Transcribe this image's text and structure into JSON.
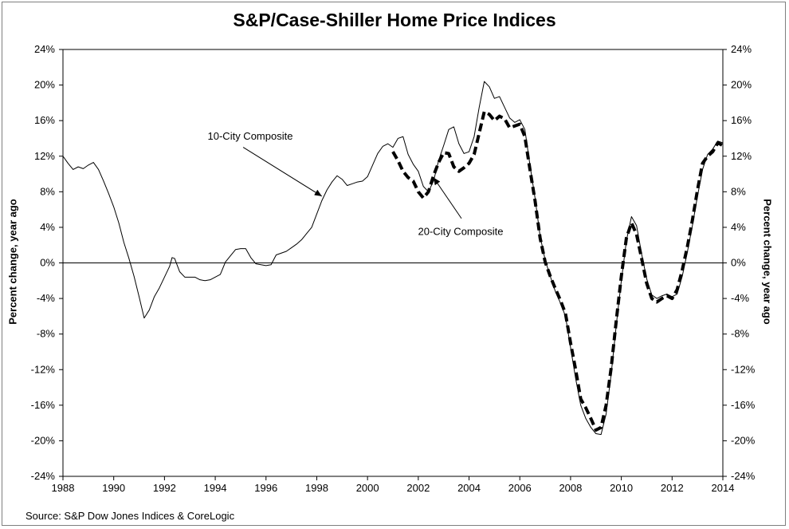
{
  "chart_data": {
    "type": "line",
    "title": "S&P/Case-Shiller Home Price Indices",
    "ylabel_left": "Percent change, year ago",
    "ylabel_right": "Percent change, year ago",
    "xlim": [
      1988,
      2014
    ],
    "ylim": [
      -24,
      24
    ],
    "x_ticks": [
      "1988",
      "1990",
      "1992",
      "1994",
      "1996",
      "1998",
      "2000",
      "2002",
      "2004",
      "2006",
      "2008",
      "2010",
      "2012",
      "2014"
    ],
    "y_ticks": [
      "24%",
      "20%",
      "16%",
      "12%",
      "8%",
      "4%",
      "0%",
      "-4%",
      "-8%",
      "-12%",
      "-16%",
      "-20%",
      "-24%"
    ],
    "grid": false,
    "annotations": [
      {
        "text": "10-City Composite",
        "series": "10-City Composite",
        "arrow_to": [
          1998.2,
          7.5
        ]
      },
      {
        "text": "20-City Composite",
        "series": "20-City Composite",
        "arrow_to": [
          2002.6,
          9.6
        ]
      }
    ],
    "series": [
      {
        "name": "10-City Composite",
        "style": "solid",
        "points": [
          [
            1988.0,
            12.0
          ],
          [
            1988.2,
            11.2
          ],
          [
            1988.4,
            10.5
          ],
          [
            1988.6,
            10.8
          ],
          [
            1988.8,
            10.6
          ],
          [
            1989.0,
            11.0
          ],
          [
            1989.2,
            11.3
          ],
          [
            1989.4,
            10.5
          ],
          [
            1989.6,
            9.2
          ],
          [
            1989.8,
            7.8
          ],
          [
            1990.0,
            6.3
          ],
          [
            1990.2,
            4.5
          ],
          [
            1990.4,
            2.3
          ],
          [
            1990.6,
            0.5
          ],
          [
            1990.8,
            -1.5
          ],
          [
            1991.0,
            -3.8
          ],
          [
            1991.2,
            -6.2
          ],
          [
            1991.4,
            -5.3
          ],
          [
            1991.6,
            -3.8
          ],
          [
            1991.8,
            -2.8
          ],
          [
            1992.0,
            -1.6
          ],
          [
            1992.2,
            -0.4
          ],
          [
            1992.3,
            0.6
          ],
          [
            1992.4,
            0.5
          ],
          [
            1992.6,
            -1.0
          ],
          [
            1992.8,
            -1.6
          ],
          [
            1993.0,
            -1.6
          ],
          [
            1993.2,
            -1.6
          ],
          [
            1993.4,
            -1.9
          ],
          [
            1993.6,
            -2.0
          ],
          [
            1993.8,
            -1.9
          ],
          [
            1994.0,
            -1.6
          ],
          [
            1994.2,
            -1.3
          ],
          [
            1994.4,
            0.1
          ],
          [
            1994.6,
            0.8
          ],
          [
            1994.8,
            1.5
          ],
          [
            1995.0,
            1.6
          ],
          [
            1995.2,
            1.6
          ],
          [
            1995.4,
            0.6
          ],
          [
            1995.6,
            -0.1
          ],
          [
            1995.8,
            -0.2
          ],
          [
            1996.0,
            -0.3
          ],
          [
            1996.2,
            -0.2
          ],
          [
            1996.4,
            0.9
          ],
          [
            1996.6,
            1.1
          ],
          [
            1996.8,
            1.3
          ],
          [
            1997.0,
            1.7
          ],
          [
            1997.2,
            2.1
          ],
          [
            1997.4,
            2.6
          ],
          [
            1997.6,
            3.3
          ],
          [
            1997.8,
            4.0
          ],
          [
            1998.0,
            5.5
          ],
          [
            1998.2,
            7.0
          ],
          [
            1998.4,
            8.2
          ],
          [
            1998.6,
            9.1
          ],
          [
            1998.8,
            9.8
          ],
          [
            1999.0,
            9.4
          ],
          [
            1999.2,
            8.7
          ],
          [
            1999.4,
            8.9
          ],
          [
            1999.6,
            9.1
          ],
          [
            1999.8,
            9.2
          ],
          [
            2000.0,
            9.7
          ],
          [
            2000.2,
            11.0
          ],
          [
            2000.4,
            12.3
          ],
          [
            2000.6,
            13.1
          ],
          [
            2000.8,
            13.4
          ],
          [
            2001.0,
            13.0
          ],
          [
            2001.2,
            14.0
          ],
          [
            2001.4,
            14.2
          ],
          [
            2001.6,
            12.2
          ],
          [
            2001.8,
            11.1
          ],
          [
            2002.0,
            10.3
          ],
          [
            2002.2,
            8.6
          ],
          [
            2002.4,
            8.0
          ],
          [
            2002.6,
            9.2
          ],
          [
            2002.8,
            11.5
          ],
          [
            2003.0,
            13.2
          ],
          [
            2003.2,
            15.0
          ],
          [
            2003.4,
            15.3
          ],
          [
            2003.6,
            13.4
          ],
          [
            2003.8,
            12.3
          ],
          [
            2004.0,
            12.5
          ],
          [
            2004.2,
            14.2
          ],
          [
            2004.4,
            17.5
          ],
          [
            2004.6,
            20.4
          ],
          [
            2004.8,
            19.8
          ],
          [
            2005.0,
            18.5
          ],
          [
            2005.2,
            18.7
          ],
          [
            2005.4,
            17.5
          ],
          [
            2005.6,
            16.3
          ],
          [
            2005.8,
            15.8
          ],
          [
            2006.0,
            16.1
          ],
          [
            2006.2,
            15.0
          ],
          [
            2006.4,
            11.0
          ],
          [
            2006.6,
            7.3
          ],
          [
            2006.8,
            3.0
          ],
          [
            2007.0,
            0.3
          ],
          [
            2007.2,
            -1.5
          ],
          [
            2007.4,
            -3.2
          ],
          [
            2007.6,
            -4.5
          ],
          [
            2007.8,
            -6.0
          ],
          [
            2008.0,
            -9.5
          ],
          [
            2008.2,
            -13.0
          ],
          [
            2008.4,
            -16.0
          ],
          [
            2008.6,
            -17.5
          ],
          [
            2008.8,
            -18.5
          ],
          [
            2009.0,
            -19.2
          ],
          [
            2009.2,
            -19.3
          ],
          [
            2009.4,
            -17.0
          ],
          [
            2009.6,
            -12.5
          ],
          [
            2009.8,
            -7.0
          ],
          [
            2010.0,
            -2.0
          ],
          [
            2010.2,
            2.5
          ],
          [
            2010.4,
            5.2
          ],
          [
            2010.6,
            4.2
          ],
          [
            2010.8,
            1.0
          ],
          [
            2011.0,
            -1.8
          ],
          [
            2011.2,
            -3.6
          ],
          [
            2011.4,
            -4.0
          ],
          [
            2011.6,
            -3.7
          ],
          [
            2011.8,
            -3.5
          ],
          [
            2012.0,
            -3.8
          ],
          [
            2012.2,
            -3.5
          ],
          [
            2012.4,
            -1.5
          ],
          [
            2012.6,
            1.2
          ],
          [
            2012.8,
            4.2
          ],
          [
            2013.0,
            7.5
          ],
          [
            2013.2,
            10.5
          ],
          [
            2013.4,
            12.2
          ],
          [
            2013.6,
            12.8
          ],
          [
            2013.8,
            13.7
          ],
          [
            2014.0,
            13.5
          ]
        ]
      },
      {
        "name": "20-City Composite",
        "style": "dashed",
        "points": [
          [
            2001.0,
            12.5
          ],
          [
            2001.2,
            11.5
          ],
          [
            2001.4,
            10.3
          ],
          [
            2001.6,
            9.6
          ],
          [
            2001.8,
            9.2
          ],
          [
            2002.0,
            8.0
          ],
          [
            2002.2,
            7.3
          ],
          [
            2002.4,
            8.0
          ],
          [
            2002.6,
            9.8
          ],
          [
            2002.8,
            11.3
          ],
          [
            2003.0,
            12.4
          ],
          [
            2003.2,
            12.3
          ],
          [
            2003.4,
            10.8
          ],
          [
            2003.6,
            10.3
          ],
          [
            2003.8,
            10.7
          ],
          [
            2004.0,
            11.2
          ],
          [
            2004.2,
            12.2
          ],
          [
            2004.4,
            14.6
          ],
          [
            2004.6,
            17.0
          ],
          [
            2004.8,
            16.7
          ],
          [
            2005.0,
            16.0
          ],
          [
            2005.2,
            16.5
          ],
          [
            2005.4,
            16.2
          ],
          [
            2005.6,
            15.2
          ],
          [
            2005.8,
            15.4
          ],
          [
            2006.0,
            15.6
          ],
          [
            2006.2,
            14.2
          ],
          [
            2006.4,
            10.5
          ],
          [
            2006.6,
            7.0
          ],
          [
            2006.8,
            2.8
          ],
          [
            2007.0,
            0.1
          ],
          [
            2007.2,
            -1.5
          ],
          [
            2007.4,
            -2.9
          ],
          [
            2007.6,
            -4.2
          ],
          [
            2007.8,
            -5.7
          ],
          [
            2008.0,
            -9.0
          ],
          [
            2008.2,
            -12.0
          ],
          [
            2008.4,
            -15.3
          ],
          [
            2008.6,
            -16.3
          ],
          [
            2008.8,
            -17.5
          ],
          [
            2009.0,
            -18.8
          ],
          [
            2009.2,
            -18.5
          ],
          [
            2009.4,
            -16.0
          ],
          [
            2009.6,
            -11.8
          ],
          [
            2009.8,
            -6.5
          ],
          [
            2010.0,
            -1.5
          ],
          [
            2010.2,
            2.8
          ],
          [
            2010.4,
            4.5
          ],
          [
            2010.6,
            3.2
          ],
          [
            2010.8,
            0.5
          ],
          [
            2011.0,
            -2.3
          ],
          [
            2011.2,
            -4.0
          ],
          [
            2011.4,
            -4.4
          ],
          [
            2011.6,
            -4.0
          ],
          [
            2011.8,
            -3.7
          ],
          [
            2012.0,
            -4.0
          ],
          [
            2012.2,
            -3.0
          ],
          [
            2012.4,
            -0.8
          ],
          [
            2012.6,
            1.8
          ],
          [
            2012.8,
            4.8
          ],
          [
            2013.0,
            8.2
          ],
          [
            2013.2,
            11.2
          ],
          [
            2013.4,
            12.0
          ],
          [
            2013.6,
            12.5
          ],
          [
            2013.8,
            13.5
          ],
          [
            2014.0,
            13.2
          ]
        ]
      }
    ]
  },
  "source": "Source: S&P Dow Jones Indices & CoreLogic"
}
